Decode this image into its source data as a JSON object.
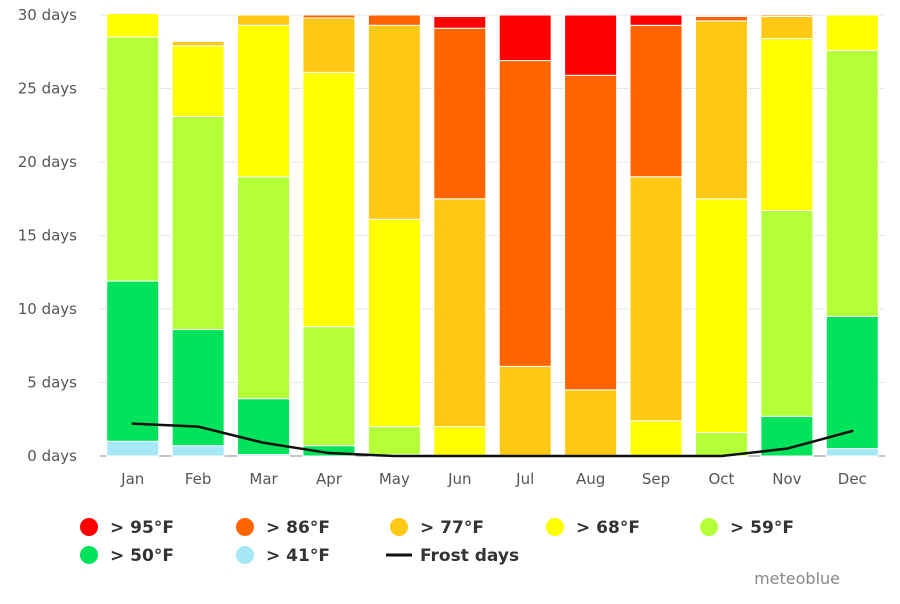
{
  "chart_data": {
    "type": "bar",
    "stacked": true,
    "y_unit": "days",
    "ylim": [
      0,
      30
    ],
    "y_ticks": [
      0,
      5,
      10,
      15,
      20,
      25,
      30
    ],
    "y_tick_labels": [
      "0 days",
      "5 days",
      "10 days",
      "15 days",
      "20 days",
      "25 days",
      "30 days"
    ],
    "grid": true,
    "legend_position": "bottom-left",
    "categories": [
      "Jan",
      "Feb",
      "Mar",
      "Apr",
      "May",
      "Jun",
      "Jul",
      "Aug",
      "Sep",
      "Oct",
      "Nov",
      "Dec"
    ],
    "series": [
      {
        "name": "> 41°F",
        "color": "#a6e8f5",
        "values": [
          1.0,
          0.7,
          0.1,
          0.0,
          0.0,
          0.0,
          0.0,
          0.0,
          0.0,
          0.0,
          0.0,
          0.5
        ]
      },
      {
        "name": "> 50°F",
        "color": "#00e35a",
        "values": [
          10.9,
          7.9,
          3.8,
          0.7,
          0.1,
          0.0,
          0.0,
          0.0,
          0.0,
          0.0,
          2.7,
          9.0
        ]
      },
      {
        "name": "> 59°F",
        "color": "#b3ff38",
        "values": [
          16.6,
          14.5,
          15.1,
          8.1,
          1.9,
          0.0,
          0.0,
          0.0,
          0.0,
          1.6,
          14.0,
          18.1
        ]
      },
      {
        "name": "> 68°F",
        "color": "#ffff00",
        "values": [
          1.6,
          4.8,
          10.3,
          17.3,
          14.1,
          2.0,
          0.0,
          0.0,
          2.4,
          15.9,
          11.7,
          2.4
        ]
      },
      {
        "name": "> 77°F",
        "color": "#ffc814",
        "values": [
          0.0,
          0.3,
          0.7,
          3.7,
          13.2,
          15.5,
          6.1,
          4.5,
          16.6,
          12.1,
          1.5,
          0.0
        ]
      },
      {
        "name": "> 86°F",
        "color": "#ff6400",
        "values": [
          0.0,
          0.0,
          0.0,
          0.2,
          0.7,
          11.6,
          20.8,
          21.4,
          10.3,
          0.3,
          0.1,
          0.0
        ]
      },
      {
        "name": "> 95°F",
        "color": "#ff0000",
        "values": [
          0.0,
          0.0,
          0.0,
          0.0,
          0.0,
          0.8,
          3.1,
          4.1,
          0.7,
          0.0,
          0.0,
          0.0
        ]
      }
    ],
    "line_series": [
      {
        "name": "Frost days",
        "color": "#111111",
        "values": [
          2.2,
          2.0,
          0.9,
          0.2,
          0.0,
          0.0,
          0.0,
          0.0,
          0.0,
          0.0,
          0.5,
          1.7
        ]
      }
    ],
    "legend_order": [
      "> 95°F",
      "> 86°F",
      "> 77°F",
      "> 68°F",
      "> 59°F",
      "> 50°F",
      "> 41°F",
      "Frost days"
    ]
  },
  "credit": "meteoblue"
}
